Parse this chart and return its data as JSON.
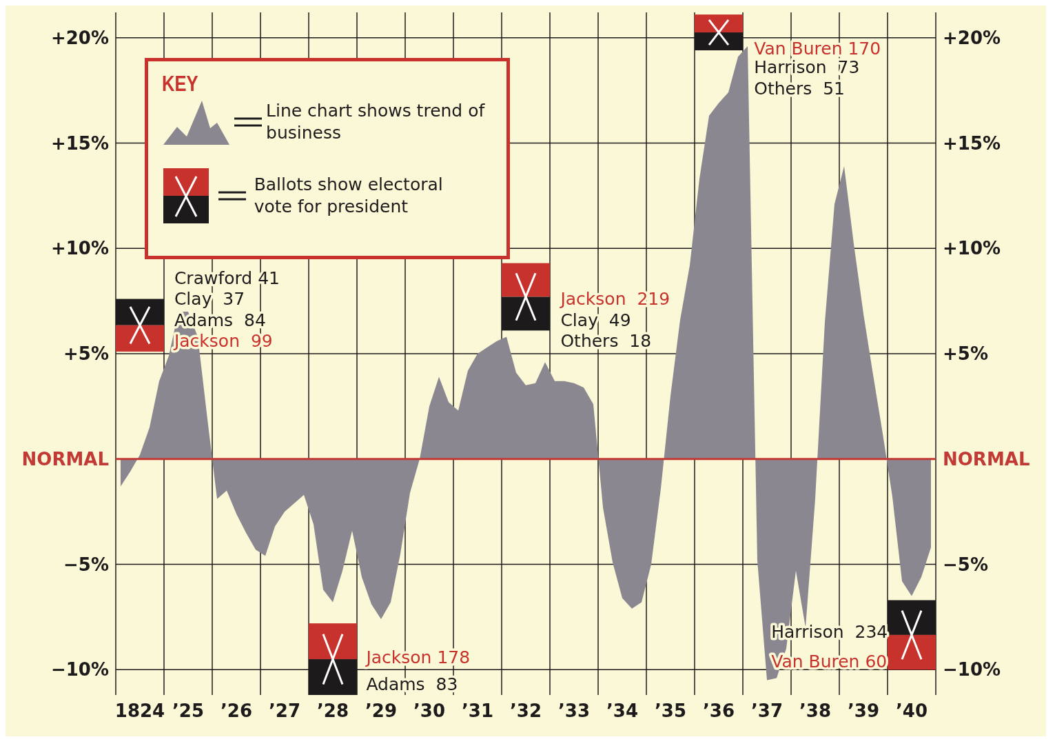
{
  "chart_data": {
    "type": "area",
    "categories": [
      null,
      null,
      "1824",
      null,
      null,
      null,
      null,
      "’25",
      null,
      null,
      null,
      null,
      "’26",
      null,
      null,
      null,
      null,
      "’27",
      null,
      null,
      null,
      null,
      "’28",
      null,
      null,
      null,
      null,
      "’29",
      null,
      null,
      null,
      null,
      "’30",
      null,
      null,
      null,
      null,
      "’31",
      null,
      null,
      null,
      null,
      "’32",
      null,
      null,
      null,
      null,
      "’33",
      null,
      null,
      null,
      null,
      "’34",
      null,
      null,
      null,
      null,
      "’35",
      null,
      null,
      null,
      null,
      "’36",
      null,
      null,
      null,
      null,
      "’37",
      null,
      null,
      null,
      null,
      "’38",
      null,
      null,
      null,
      null,
      "’39",
      null,
      null,
      null,
      null,
      "’40",
      null,
      null
    ],
    "series": [
      {
        "color": "#8b8791",
        "values": [
          -1.3,
          -0.6,
          0.2,
          1.5,
          3.7,
          4.9,
          7.0,
          7.0,
          5.8,
          1.9,
          -1.9,
          -1.5,
          -2.6,
          -3.5,
          -4.3,
          -4.6,
          -3.2,
          -2.5,
          -2.1,
          -1.7,
          -3.1,
          -6.2,
          -6.8,
          -5.3,
          -3.4,
          -5.6,
          -6.9,
          -7.6,
          -6.8,
          -4.5,
          -1.6,
          0,
          2.5,
          3.9,
          2.7,
          2.3,
          4.2,
          5.0,
          5.3,
          5.6,
          5.8,
          4.1,
          3.5,
          3.6,
          4.6,
          3.7,
          3.7,
          3.6,
          3.4,
          2.6,
          -2.3,
          -4.9,
          -6.6,
          -7.1,
          -6.8,
          -5.0,
          -1.4,
          3.0,
          6.6,
          9.2,
          13.3,
          16.3,
          16.9,
          17.4,
          19.1,
          19.6,
          -4.8,
          -10.5,
          -10.4,
          -9.0,
          -5.3,
          -8.0,
          -1.9,
          6.5,
          12.1,
          13.9,
          10.2,
          6.9,
          4.0,
          1.2,
          -1.8,
          -5.8,
          -6.5,
          -5.6,
          -4.2
        ]
      }
    ],
    "ylim": [
      -11.2,
      21.2
    ],
    "yticks": [
      {
        "value": 20,
        "label": "+20%"
      },
      {
        "value": 15,
        "label": "+15%"
      },
      {
        "value": 10,
        "label": "+10%"
      },
      {
        "value": 5,
        "label": "+5%"
      },
      {
        "value": 0,
        "label": "NORMAL"
      },
      {
        "value": -5,
        "label": "−5%"
      },
      {
        "value": -10,
        "label": "−10%"
      }
    ],
    "y2lim": [
      -11.2,
      21.2
    ],
    "y2ticks": [
      {
        "value": 20,
        "label": "+20%"
      },
      {
        "value": 15,
        "label": "+15%"
      },
      {
        "value": 10,
        "label": "+10%"
      },
      {
        "value": 5,
        "label": "+5%"
      },
      {
        "value": 0,
        "label": "NORMAL"
      },
      {
        "value": -5,
        "label": "−5%"
      },
      {
        "value": -10,
        "label": "−10%"
      }
    ],
    "grid": true,
    "ref_lines": [
      {
        "axis": "y",
        "value": 0,
        "color": "#c23a35"
      }
    ],
    "annotations": [
      "KEY",
      "Line chart shows trend of business",
      "Ballots show electoral vote for president",
      "Crawford 41",
      "Clay  37",
      "Adams  84",
      "Jackson  99",
      "Jackson 178",
      "Adams  83",
      "Jackson  219",
      "Clay  49",
      "Others  18",
      "Van Buren 170",
      "Harrison  73",
      "Others  51",
      "Harrison  234",
      "Van Buren 60"
    ]
  }
}
